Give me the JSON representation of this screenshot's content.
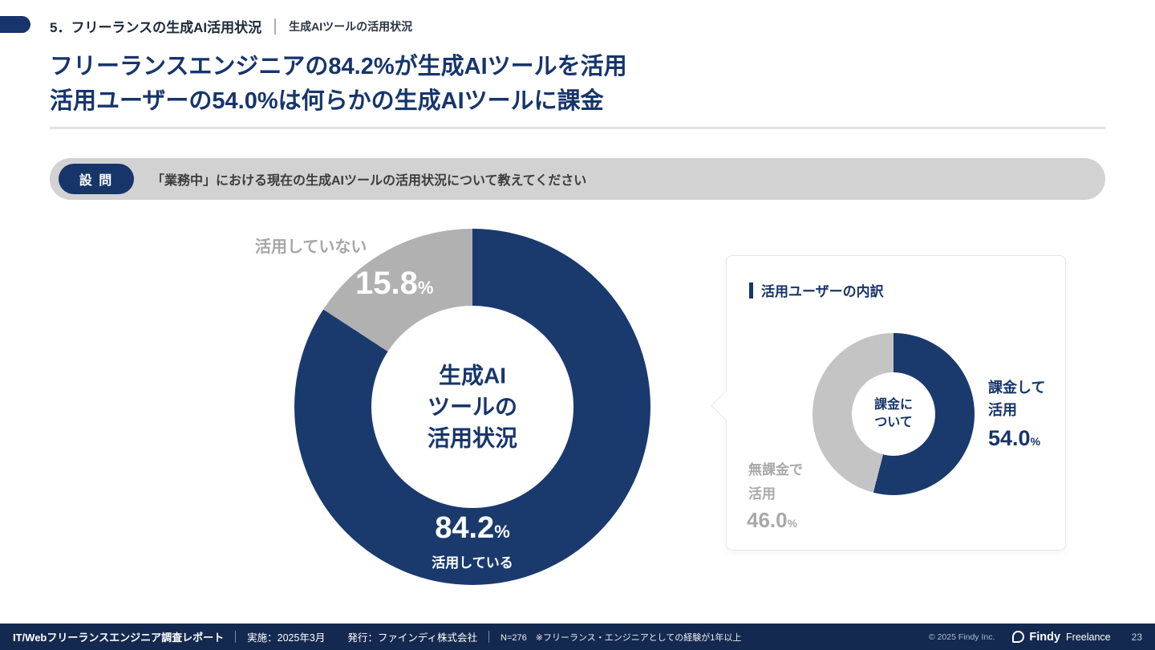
{
  "header": {
    "section_label": "5．フリーランスの生成AI活用状況",
    "section_sublabel": "生成AIツールの活用状況",
    "title_line1": "フリーランスエンジニアの84.2%が生成AIツールを活用",
    "title_line2": "活用ユーザーの54.0%は何らかの生成AIツールに課金"
  },
  "question": {
    "badge_label": "設 問",
    "text": "「業務中」における現在の生成AIツールの活用状況について教えてください"
  },
  "chart_data": [
    {
      "type": "pie",
      "title": "生成AIツールの活用状況",
      "unit": "%",
      "center_label_lines": [
        "生成AI",
        "ツールの",
        "活用状況"
      ],
      "segments": [
        {
          "label": "活用している",
          "value": 84.2,
          "display": "84.2",
          "color": "#1a3a6e"
        },
        {
          "label": "活用していない",
          "value": 15.8,
          "display": "15.8",
          "color": "#b1b1b1"
        }
      ]
    },
    {
      "type": "pie",
      "title": "活用ユーザーの内訳",
      "unit": "%",
      "center_label_lines": [
        "課金に",
        "ついて"
      ],
      "segments": [
        {
          "label": "課金して活用",
          "value": 54.0,
          "display": "54.0",
          "color": "#1a3a6e",
          "label_lines": [
            "課金して",
            "活用"
          ]
        },
        {
          "label": "無課金で活用",
          "value": 46.0,
          "display": "46.0",
          "color": "#c4c4c4",
          "label_lines": [
            "無課金で",
            "活用"
          ]
        }
      ]
    }
  ],
  "footer": {
    "report_title": "IT/Webフリーランスエンジニア調査レポート",
    "implementation": "実施：2025年3月",
    "publisher": "発行：ファインディ株式会社",
    "sample_note": "N=276　※フリーランス・エンジニアとしての経験が1年以上",
    "copyright": "© 2025 Findy Inc.",
    "brand": "Findy",
    "brand_sub": "Freelance",
    "page_number": "23"
  }
}
